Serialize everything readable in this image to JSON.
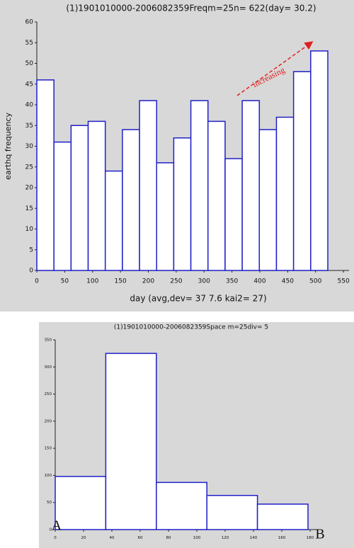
{
  "chart_data": [
    {
      "type": "histogram",
      "title": "(1)1901010000-2006082359Freqm=25n=  622(day= 30.2)",
      "xlabel": "day    (avg,dev=   37  7.6 kai2=    27)",
      "ylabel": "earthq frequency",
      "bins": [
        0,
        30.7,
        61.4,
        92.1,
        122.8,
        153.5,
        184.2,
        214.9,
        245.6,
        276.3,
        307,
        337.7,
        368.4,
        399.1,
        429.8,
        460.5,
        491.2,
        521.9
      ],
      "values": [
        46,
        31,
        35,
        36,
        24,
        34,
        41,
        26,
        32,
        41,
        36,
        27,
        41,
        34,
        37,
        48,
        53
      ],
      "color": "#2020c8",
      "xlim": [
        0,
        560
      ],
      "xticks": [
        0,
        50,
        100,
        150,
        200,
        250,
        300,
        350,
        400,
        450,
        500,
        550
      ],
      "ylim": [
        0,
        60
      ],
      "yticks": [
        0,
        5,
        10,
        15,
        20,
        25,
        30,
        35,
        40,
        45,
        50,
        55,
        60
      ],
      "grid": false,
      "annotations": [
        "increasing"
      ]
    },
    {
      "type": "histogram",
      "title": "(1)1901010000-2006082359Space m=25div= 5",
      "bins": [
        0,
        35.7,
        71.4,
        107.1,
        142.8,
        178.5
      ],
      "values": [
        98,
        325,
        87,
        63,
        47
      ],
      "color": "#2020c8",
      "xlim": [
        0,
        185
      ],
      "xticks": [
        0,
        20,
        40,
        60,
        80,
        100,
        120,
        140,
        160,
        180
      ],
      "ylim": [
        0,
        350
      ],
      "yticks": [
        0,
        50,
        100,
        150,
        200,
        250,
        300,
        350
      ],
      "grid": false,
      "annotations": [
        "A",
        "B"
      ]
    }
  ]
}
